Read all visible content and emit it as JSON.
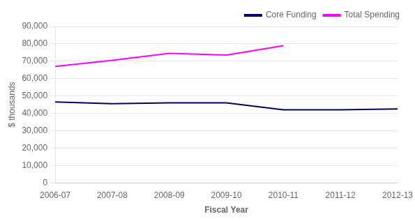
{
  "chart_data": {
    "type": "line",
    "categories": [
      "2006-07",
      "2007-08",
      "2008-09",
      "2009-10",
      "2010-11",
      "2011-12",
      "2012-13"
    ],
    "series": [
      {
        "name": "Core Funding",
        "color": "#000066",
        "values": [
          46500,
          45500,
          46000,
          46000,
          42000,
          42000,
          42500
        ]
      },
      {
        "name": "Total Spending",
        "color": "#FF00FF",
        "values": [
          67000,
          70500,
          74500,
          73500,
          79000,
          null,
          null
        ]
      }
    ],
    "xlabel": "Fiscal Year",
    "ylabel": "$ thousands",
    "ylim": [
      0,
      90000
    ],
    "yticks": [
      0,
      {
        "value": 10000,
        "label": "10,000"
      },
      {
        "value": 20000,
        "label": "20,000"
      },
      {
        "value": 30000,
        "label": "30,000"
      },
      {
        "value": 40000,
        "label": "40,000"
      },
      {
        "value": 50000,
        "label": "50,000"
      },
      {
        "value": 60000,
        "label": "60,000"
      },
      {
        "value": 70000,
        "label": "70,000"
      },
      {
        "value": 80000,
        "label": "80,000"
      },
      {
        "value": 90000,
        "label": "90,000"
      }
    ],
    "grid": true,
    "legend": "upper right"
  }
}
